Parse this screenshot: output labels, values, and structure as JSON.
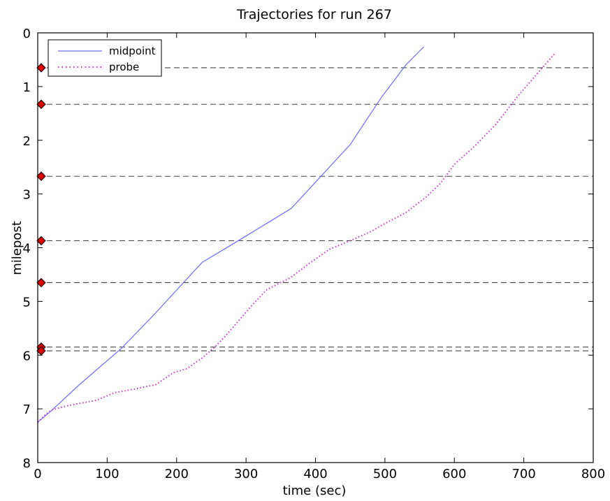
{
  "chart_data": {
    "type": "line",
    "title": "Trajectories for run 267",
    "xlabel": "time (sec)",
    "ylabel": "milepost",
    "xlim": [
      0,
      800
    ],
    "ylim": [
      8,
      0
    ],
    "y_inverted": true,
    "x_ticks": [
      "0",
      "100",
      "200",
      "300",
      "400",
      "500",
      "600",
      "700",
      "800"
    ],
    "y_ticks": [
      "0",
      "1",
      "2",
      "3",
      "4",
      "5",
      "6",
      "7",
      "8"
    ],
    "grid": false,
    "legend_position": "top-left",
    "series": [
      {
        "name": "midpoint",
        "style": "solid",
        "color": "#6a6aff",
        "points": [
          [
            0,
            7.25
          ],
          [
            20,
            7.03
          ],
          [
            60,
            6.55
          ],
          [
            120,
            5.88
          ],
          [
            165,
            5.28
          ],
          [
            237,
            4.27
          ],
          [
            285,
            3.9
          ],
          [
            365,
            3.27
          ],
          [
            450,
            2.08
          ],
          [
            495,
            1.2
          ],
          [
            530,
            0.6
          ],
          [
            556,
            0.26
          ]
        ]
      },
      {
        "name": "probe",
        "style": "dotted",
        "color": "#cc33cc",
        "points": [
          [
            0,
            7.25
          ],
          [
            10,
            7.12
          ],
          [
            20,
            7.02
          ],
          [
            40,
            6.95
          ],
          [
            60,
            6.9
          ],
          [
            85,
            6.84
          ],
          [
            110,
            6.7
          ],
          [
            140,
            6.63
          ],
          [
            170,
            6.55
          ],
          [
            195,
            6.33
          ],
          [
            215,
            6.25
          ],
          [
            237,
            6.05
          ],
          [
            255,
            5.85
          ],
          [
            270,
            5.65
          ],
          [
            290,
            5.35
          ],
          [
            310,
            5.05
          ],
          [
            330,
            4.78
          ],
          [
            365,
            4.55
          ],
          [
            390,
            4.3
          ],
          [
            420,
            4.03
          ],
          [
            450,
            3.87
          ],
          [
            480,
            3.7
          ],
          [
            500,
            3.55
          ],
          [
            530,
            3.35
          ],
          [
            560,
            3.05
          ],
          [
            580,
            2.8
          ],
          [
            600,
            2.45
          ],
          [
            630,
            2.1
          ],
          [
            660,
            1.7
          ],
          [
            690,
            1.2
          ],
          [
            720,
            0.75
          ],
          [
            745,
            0.38
          ]
        ]
      }
    ],
    "reference_lines": [
      0.65,
      1.33,
      2.67,
      3.87,
      4.65,
      5.85,
      5.92
    ],
    "markers": [
      {
        "x": 5,
        "y": 0.65
      },
      {
        "x": 5,
        "y": 1.33
      },
      {
        "x": 5,
        "y": 2.67
      },
      {
        "x": 5,
        "y": 3.87
      },
      {
        "x": 5,
        "y": 4.65
      },
      {
        "x": 5,
        "y": 5.85
      },
      {
        "x": 5,
        "y": 5.92
      }
    ],
    "marker_color": "#dd0000",
    "reference_line_color": "#444444"
  }
}
